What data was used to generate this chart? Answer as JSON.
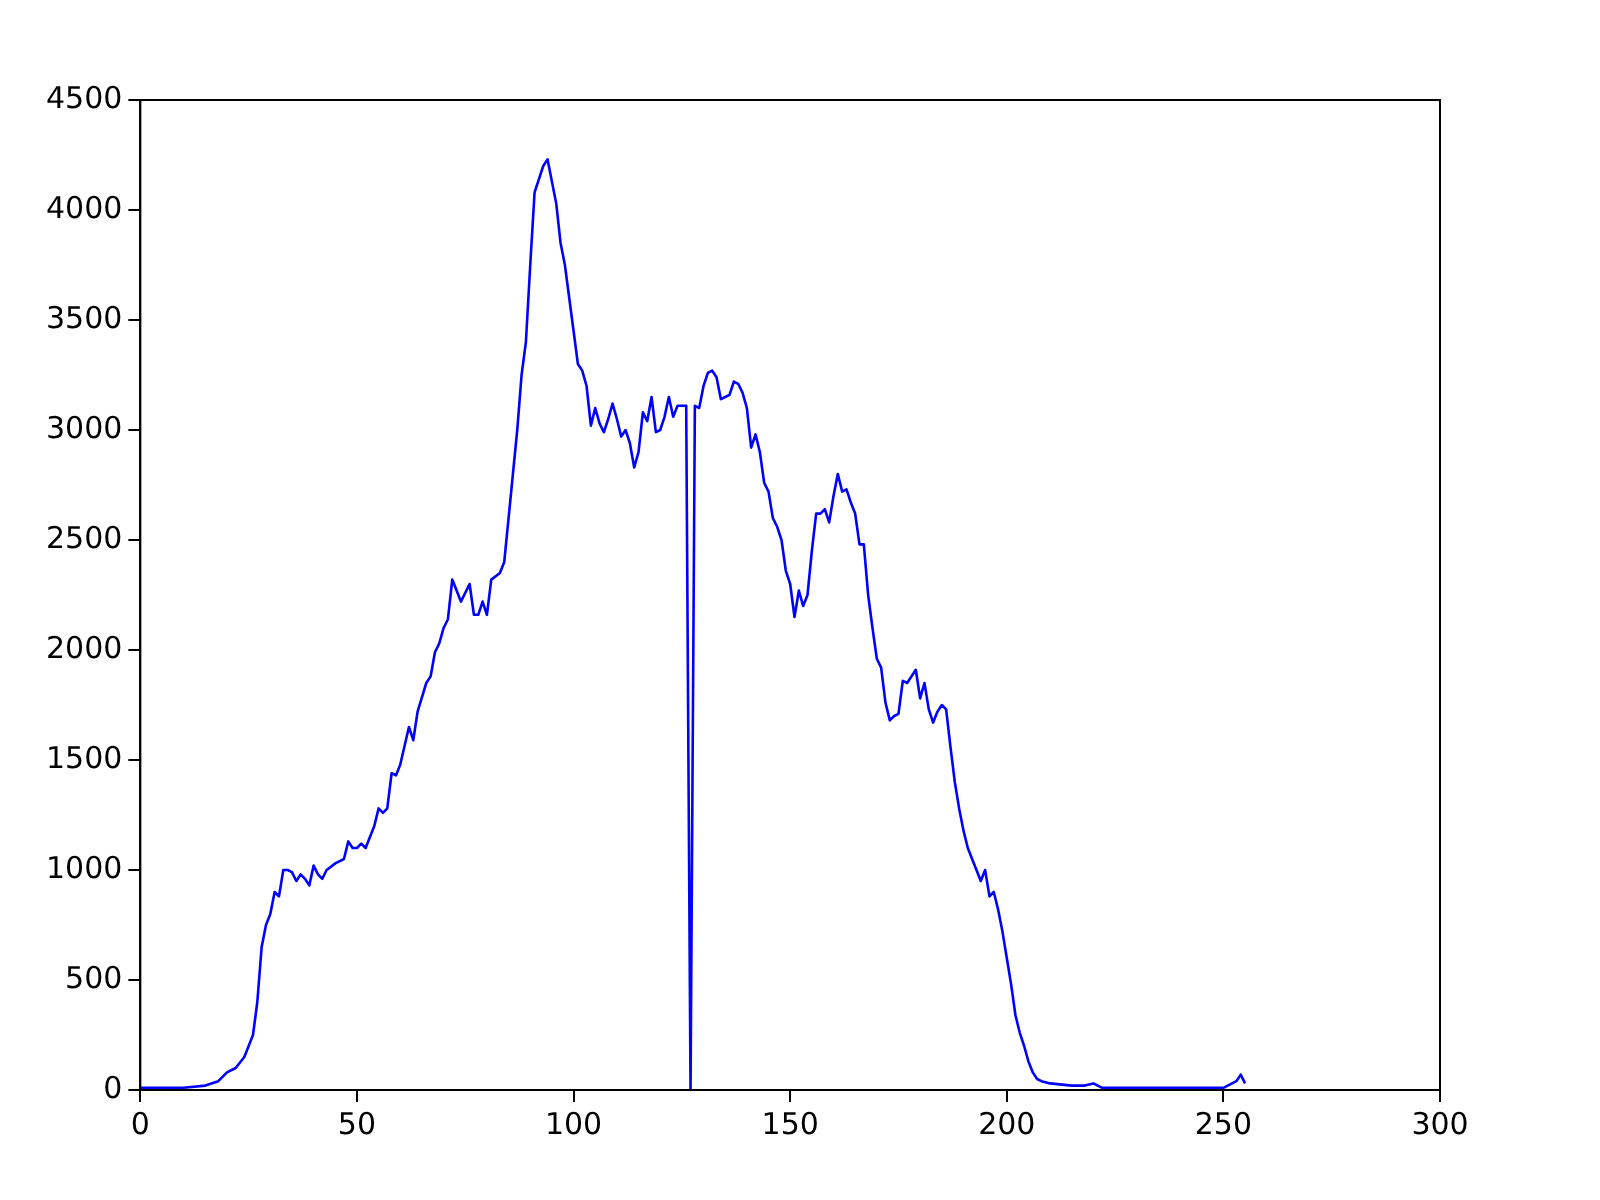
{
  "chart_data": {
    "type": "line",
    "xlim": [
      0,
      300
    ],
    "ylim": [
      0,
      4500
    ],
    "xticks": [
      0,
      50,
      100,
      150,
      200,
      250,
      300
    ],
    "yticks": [
      0,
      500,
      1000,
      1500,
      2000,
      2500,
      3000,
      3500,
      4000,
      4500
    ],
    "grid": false,
    "legend": false,
    "marker": "none",
    "line_style": "solid",
    "series": [
      {
        "color": "#0000ff",
        "x": [
          0,
          5,
          10,
          15,
          18,
          20,
          22,
          24,
          26,
          27,
          28,
          29,
          30,
          31,
          32,
          33,
          34,
          35,
          36,
          37,
          38,
          39,
          40,
          41,
          42,
          43,
          45,
          47,
          48,
          49,
          50,
          51,
          52,
          54,
          55,
          56,
          57,
          58,
          59,
          60,
          62,
          63,
          64,
          66,
          67,
          68,
          69,
          70,
          71,
          72,
          74,
          76,
          77,
          78,
          79,
          80,
          81,
          83,
          84,
          86,
          87,
          88,
          89,
          90,
          91,
          93,
          94,
          95,
          96,
          97,
          98,
          99,
          100,
          101,
          102,
          103,
          104,
          105,
          106,
          107,
          108,
          109,
          110,
          111,
          112,
          113,
          114,
          115,
          116,
          117,
          118,
          119,
          120,
          121,
          122,
          123,
          124,
          125,
          126,
          127,
          128,
          129,
          130,
          131,
          132,
          133,
          134,
          135,
          136,
          137,
          138,
          139,
          140,
          141,
          142,
          143,
          144,
          145,
          146,
          147,
          148,
          149,
          150,
          151,
          152,
          153,
          154,
          155,
          156,
          157,
          158,
          159,
          160,
          161,
          162,
          163,
          164,
          165,
          166,
          167,
          168,
          169,
          170,
          171,
          172,
          173,
          174,
          175,
          176,
          177,
          178,
          179,
          180,
          181,
          182,
          183,
          184,
          185,
          186,
          187,
          188,
          189,
          190,
          191,
          192,
          193,
          194,
          195,
          196,
          197,
          198,
          199,
          200,
          201,
          202,
          203,
          204,
          205,
          206,
          207,
          208,
          210,
          215,
          218,
          220,
          222,
          225,
          240,
          250,
          251,
          253,
          254,
          255
        ],
        "values": [
          10,
          10,
          10,
          20,
          40,
          80,
          100,
          150,
          250,
          400,
          650,
          750,
          800,
          900,
          880,
          1000,
          1000,
          990,
          950,
          980,
          960,
          930,
          1020,
          980,
          960,
          1000,
          1030,
          1050,
          1130,
          1100,
          1100,
          1120,
          1100,
          1200,
          1280,
          1260,
          1280,
          1440,
          1430,
          1480,
          1650,
          1590,
          1720,
          1850,
          1880,
          1990,
          2030,
          2100,
          2140,
          2320,
          2220,
          2300,
          2160,
          2160,
          2220,
          2160,
          2320,
          2350,
          2400,
          2800,
          3000,
          3250,
          3400,
          3750,
          4080,
          4200,
          4230,
          4130,
          4030,
          3850,
          3750,
          3600,
          3450,
          3300,
          3270,
          3200,
          3020,
          3100,
          3030,
          2990,
          3050,
          3120,
          3050,
          2970,
          3000,
          2940,
          2830,
          2900,
          3080,
          3040,
          3150,
          2990,
          3000,
          3060,
          3150,
          3060,
          3110,
          3110,
          3110,
          0,
          3110,
          3100,
          3200,
          3260,
          3270,
          3240,
          3140,
          3150,
          3160,
          3220,
          3210,
          3170,
          3100,
          2920,
          2980,
          2900,
          2760,
          2720,
          2600,
          2560,
          2500,
          2360,
          2300,
          2150,
          2270,
          2200,
          2250,
          2450,
          2620,
          2620,
          2640,
          2580,
          2700,
          2800,
          2720,
          2730,
          2670,
          2620,
          2480,
          2480,
          2250,
          2100,
          1960,
          1920,
          1760,
          1680,
          1700,
          1710,
          1860,
          1850,
          1880,
          1910,
          1780,
          1850,
          1730,
          1670,
          1720,
          1750,
          1730,
          1560,
          1400,
          1280,
          1180,
          1100,
          1050,
          1000,
          950,
          1000,
          880,
          900,
          820,
          720,
          600,
          480,
          340,
          260,
          200,
          130,
          80,
          50,
          40,
          30,
          20,
          20,
          30,
          10,
          10,
          10,
          10,
          20,
          40,
          70,
          30
        ]
      }
    ]
  }
}
